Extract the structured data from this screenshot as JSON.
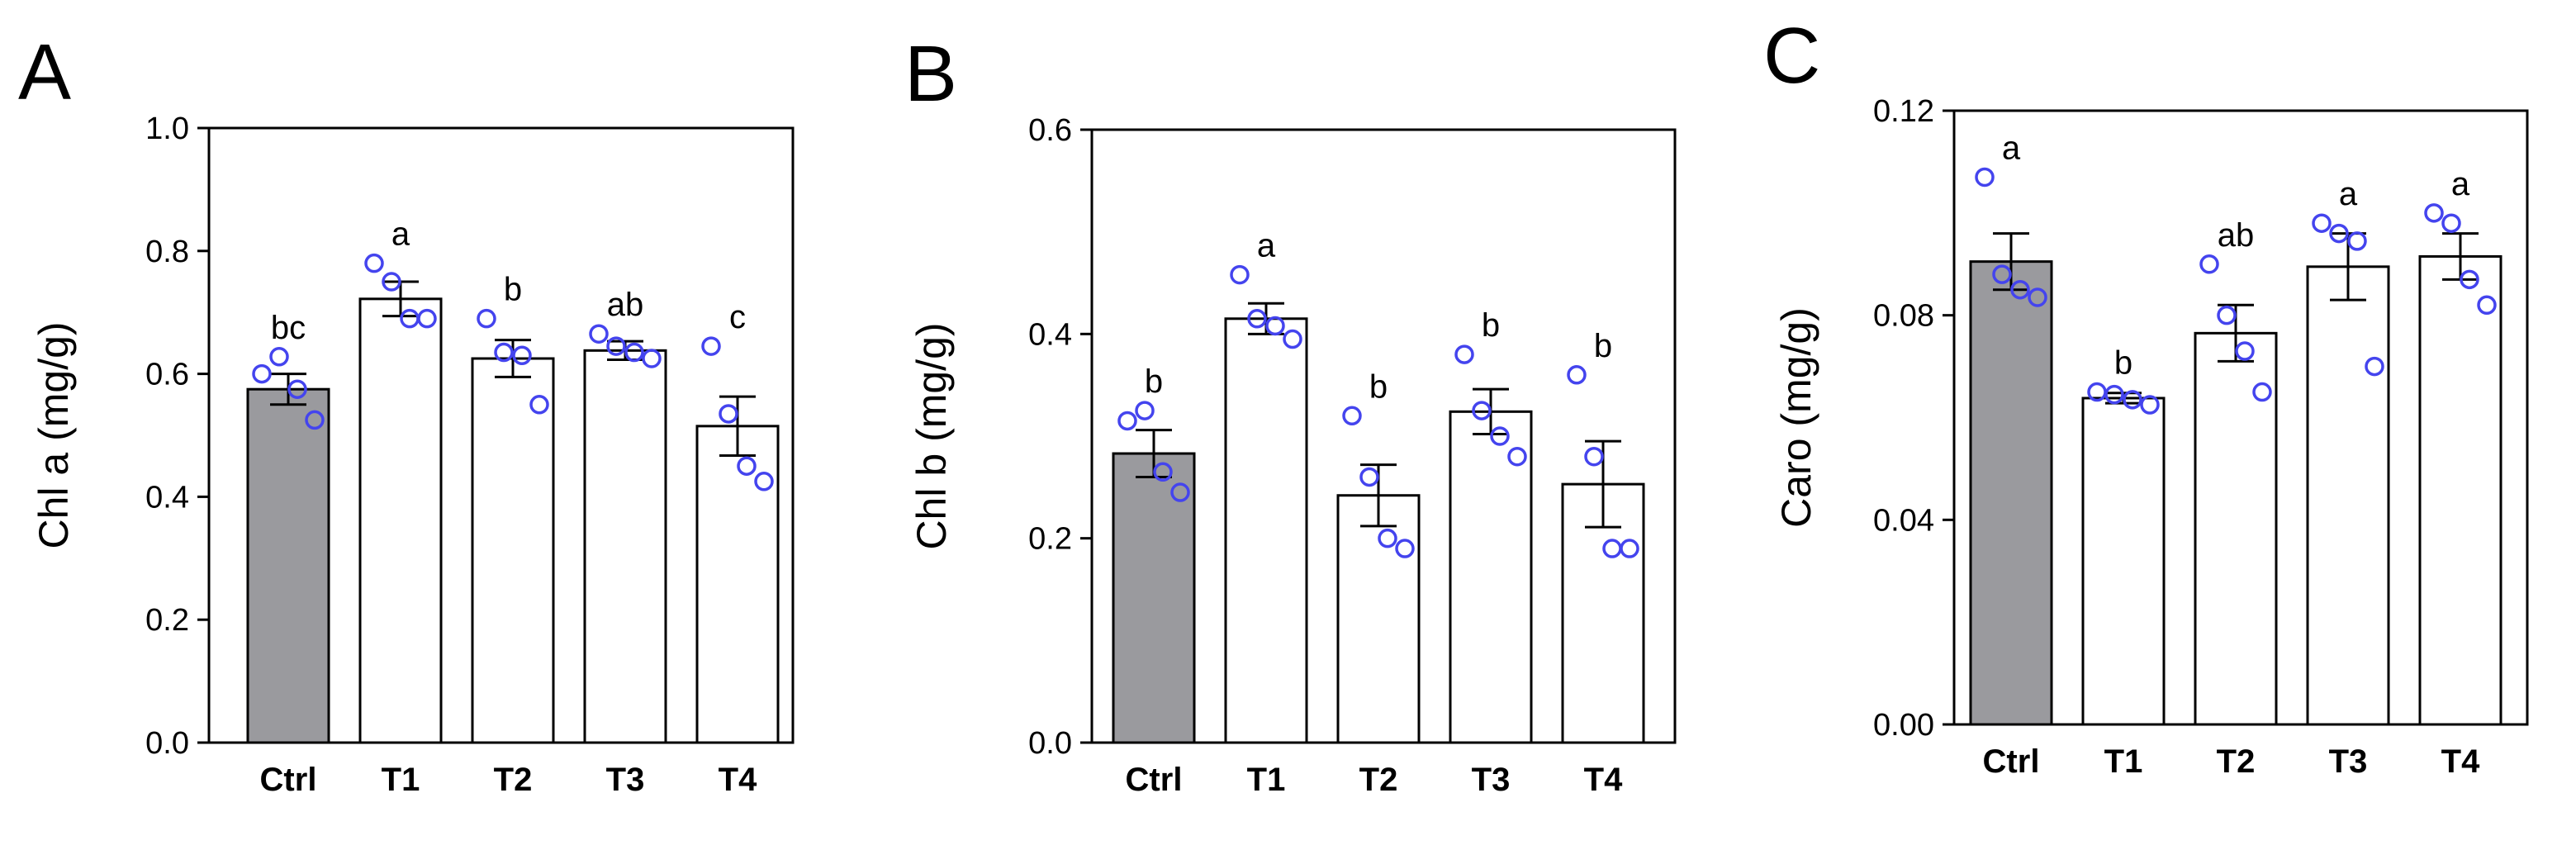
{
  "chart_data": [
    {
      "type": "bar",
      "panel_label": "A",
      "ylabel": "Chl a (mg/g)",
      "ylim": [
        0,
        1.0
      ],
      "yticks": [
        "0.0",
        "0.2",
        "0.4",
        "0.6",
        "0.8",
        "1.0"
      ],
      "categories": [
        "Ctrl",
        "T1",
        "T2",
        "T3",
        "T4"
      ],
      "values": [
        0.575,
        0.722,
        0.625,
        0.638,
        0.515
      ],
      "errors": [
        0.025,
        0.028,
        0.03,
        0.015,
        0.048
      ],
      "points": [
        [
          0.6,
          0.628,
          0.575,
          0.525
        ],
        [
          0.78,
          0.75,
          0.69,
          0.69
        ],
        [
          0.69,
          0.635,
          0.63,
          0.55
        ],
        [
          0.665,
          0.645,
          0.635,
          0.625
        ],
        [
          0.645,
          0.535,
          0.45,
          0.425
        ]
      ],
      "significance": [
        "bc",
        "a",
        "b",
        "ab",
        "c"
      ],
      "bar_colors": [
        "#9a9a9e",
        "#ffffff",
        "#ffffff",
        "#ffffff",
        "#ffffff"
      ],
      "point_color": "#4444ee"
    },
    {
      "type": "bar",
      "panel_label": "B",
      "ylabel": "Chl b (mg/g)",
      "ylim": [
        0,
        0.6
      ],
      "yticks": [
        "0.0",
        "0.2",
        "0.4",
        "0.6"
      ],
      "categories": [
        "Ctrl",
        "T1",
        "T2",
        "T3",
        "T4"
      ],
      "values": [
        0.283,
        0.415,
        0.242,
        0.324,
        0.253
      ],
      "errors": [
        0.023,
        0.015,
        0.03,
        0.022,
        0.042
      ],
      "points": [
        [
          0.315,
          0.325,
          0.265,
          0.245
        ],
        [
          0.458,
          0.415,
          0.408,
          0.395
        ],
        [
          0.32,
          0.26,
          0.2,
          0.19
        ],
        [
          0.38,
          0.325,
          0.3,
          0.28
        ],
        [
          0.36,
          0.28,
          0.19,
          0.19
        ]
      ],
      "significance": [
        "b",
        "a",
        "b",
        "b",
        "b"
      ],
      "bar_colors": [
        "#9a9a9e",
        "#ffffff",
        "#ffffff",
        "#ffffff",
        "#ffffff"
      ],
      "point_color": "#4444ee"
    },
    {
      "type": "bar",
      "panel_label": "C",
      "ylabel": "Caro (mg/g)",
      "ylim": [
        0,
        0.12
      ],
      "yticks": [
        "0.00",
        "0.04",
        "0.08",
        "0.12"
      ],
      "categories": [
        "Ctrl",
        "T1",
        "T2",
        "T3",
        "T4"
      ],
      "values": [
        0.0905,
        0.0638,
        0.0765,
        0.0895,
        0.0915
      ],
      "errors": [
        0.0055,
        0.001,
        0.0055,
        0.0065,
        0.0045
      ],
      "points": [
        [
          0.107,
          0.088,
          0.085,
          0.0835
        ],
        [
          0.065,
          0.0645,
          0.0635,
          0.0625
        ],
        [
          0.09,
          0.08,
          0.073,
          0.065
        ],
        [
          0.098,
          0.096,
          0.0945,
          0.07
        ],
        [
          0.1,
          0.098,
          0.087,
          0.082
        ]
      ],
      "significance": [
        "a",
        "b",
        "ab",
        "a",
        "a"
      ],
      "bar_colors": [
        "#9a9a9e",
        "#ffffff",
        "#ffffff",
        "#ffffff",
        "#ffffff"
      ],
      "point_color": "#4444ee"
    }
  ]
}
